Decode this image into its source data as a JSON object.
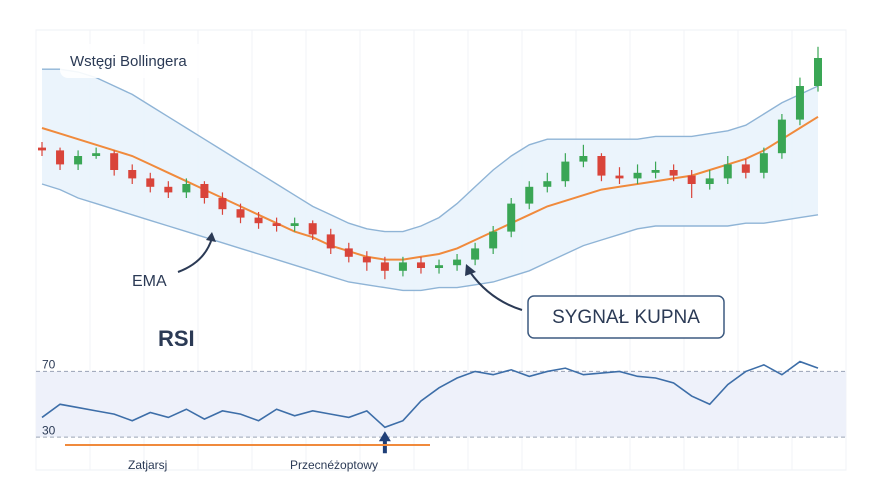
{
  "chart_data": [
    {
      "type": "candlestick",
      "bands_label": "Wstęgi Bollingera",
      "ema_label": "EMA",
      "signal_label": "SYGNAŁ KUPNA",
      "ylim": [
        0,
        100
      ],
      "up_color": "#3aa655",
      "down_color": "#d9443a",
      "open": [
        58,
        57,
        52,
        55,
        56,
        50,
        47,
        44,
        42,
        45,
        40,
        36,
        33,
        31,
        30,
        31,
        27,
        22,
        19,
        17,
        14,
        17,
        15,
        16,
        18,
        22,
        28,
        38,
        44,
        46,
        53,
        55,
        48,
        47,
        49,
        50,
        48,
        45,
        47,
        52,
        49,
        56,
        68,
        80
      ],
      "high": [
        60,
        58,
        57,
        58,
        57,
        52,
        49,
        46,
        47,
        46,
        42,
        38,
        35,
        33,
        33,
        32,
        29,
        24,
        21,
        19,
        19,
        19,
        18,
        20,
        24,
        30,
        40,
        46,
        49,
        56,
        59,
        56,
        51,
        52,
        53,
        52,
        50,
        50,
        55,
        54,
        58,
        70,
        83,
        94
      ],
      "low": [
        55,
        50,
        50,
        54,
        48,
        45,
        42,
        40,
        40,
        38,
        34,
        31,
        29,
        28,
        28,
        25,
        20,
        17,
        14,
        11,
        12,
        13,
        13,
        14,
        16,
        20,
        26,
        36,
        42,
        44,
        51,
        46,
        45,
        45,
        47,
        46,
        40,
        43,
        45,
        47,
        47,
        54,
        66,
        78
      ],
      "close": [
        57,
        52,
        55,
        56,
        50,
        47,
        44,
        42,
        45,
        40,
        36,
        33,
        31,
        30,
        31,
        27,
        22,
        19,
        17,
        14,
        17,
        15,
        16,
        18,
        22,
        28,
        38,
        44,
        46,
        53,
        55,
        48,
        47,
        49,
        50,
        48,
        45,
        47,
        52,
        49,
        56,
        68,
        80,
        90
      ],
      "series": [
        {
          "name": "EMA",
          "color": "#f08a3c",
          "values": [
            65,
            63,
            61,
            59,
            57,
            55,
            52,
            49,
            46,
            43,
            40,
            37,
            34,
            31,
            28,
            26,
            23,
            21,
            19,
            18,
            18,
            19,
            20,
            22,
            25,
            28,
            31,
            34,
            37,
            39,
            41,
            43,
            44,
            45,
            46,
            47,
            48,
            50,
            52,
            54,
            57,
            61,
            65,
            69
          ]
        },
        {
          "name": "Upper",
          "color": "#8fb4d6",
          "values": [
            86,
            86,
            85,
            83,
            80,
            77,
            73,
            69,
            65,
            61,
            57,
            53,
            49,
            45,
            41,
            37,
            34,
            31,
            29,
            28,
            28,
            30,
            33,
            38,
            44,
            50,
            55,
            59,
            61,
            61,
            61,
            61,
            61,
            61,
            62,
            62,
            62,
            63,
            64,
            66,
            70,
            74,
            77,
            80
          ]
        },
        {
          "name": "Lower",
          "color": "#8fb4d6",
          "values": [
            45,
            43,
            40,
            38,
            36,
            34,
            32,
            30,
            28,
            26,
            24,
            22,
            20,
            18,
            16,
            14,
            12,
            10,
            9,
            8,
            7,
            7,
            8,
            8,
            9,
            10,
            12,
            14,
            17,
            20,
            23,
            25,
            27,
            29,
            30,
            30,
            30,
            30,
            30,
            31,
            31,
            32,
            33,
            34
          ]
        }
      ]
    },
    {
      "type": "line",
      "title": "RSI",
      "ylim": [
        10,
        80
      ],
      "yticks": [
        30,
        70
      ],
      "color": "#3d6ea8",
      "signal_index": 19,
      "values": [
        42,
        50,
        48,
        46,
        44,
        40,
        45,
        42,
        47,
        41,
        46,
        44,
        40,
        47,
        43,
        46,
        44,
        42,
        46,
        36,
        40,
        52,
        60,
        66,
        70,
        68,
        71,
        67,
        70,
        72,
        68,
        69,
        70,
        67,
        66,
        63,
        55,
        50,
        62,
        70,
        74,
        68,
        76,
        72
      ],
      "bottom_labels": [
        "Zatjarsj",
        "Przecnéżoptowy"
      ]
    }
  ]
}
